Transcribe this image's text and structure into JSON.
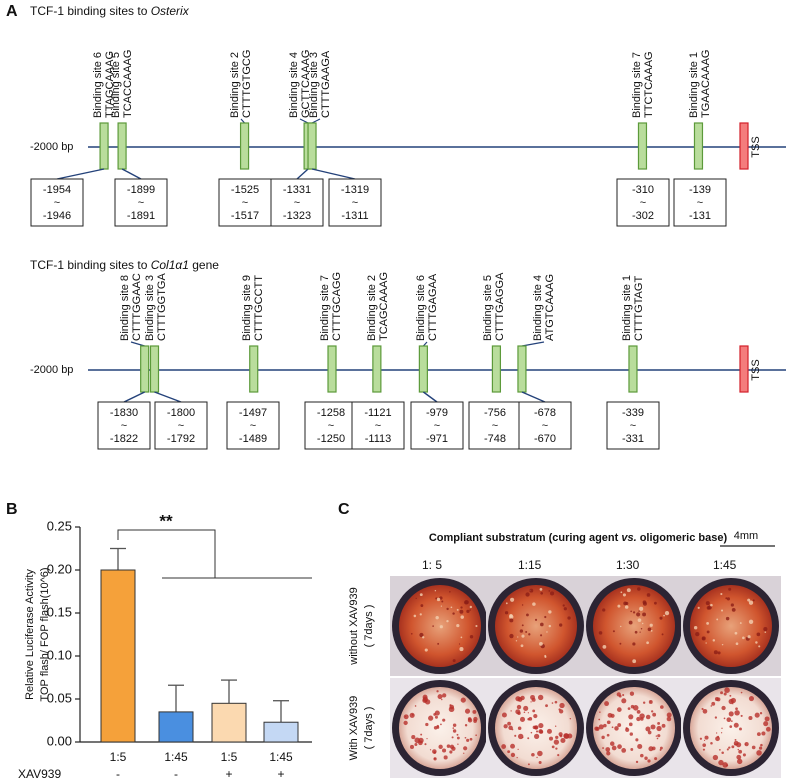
{
  "panel_a": {
    "label": "A",
    "osterix": {
      "title": "TCF-1 binding sites to ",
      "gene": "Osterix",
      "start": "-2000 bp",
      "tss": "TSS",
      "tilde": "~",
      "sites": [
        {
          "name": "Binding site 6",
          "seq": "TTAGCAAAG",
          "from": -1954,
          "to": -1946
        },
        {
          "name": "Binding site 5",
          "seq": "TCACCAAAG",
          "from": -1899,
          "to": -1891
        },
        {
          "name": "Binding site 2",
          "seq": "CTTTGTGCG",
          "from": -1525,
          "to": -1517
        },
        {
          "name": "Binding site 4",
          "seq": "GCTTCAAAG",
          "from": -1331,
          "to": -1323
        },
        {
          "name": "Binding site 3",
          "seq": "CTTTGAAGA",
          "from": -1319,
          "to": -1311
        },
        {
          "name": "Binding site 7",
          "seq": "TTCTCAAAG",
          "from": -310,
          "to": -302
        },
        {
          "name": "Binding site 1",
          "seq": "TGAACAAAG",
          "from": -139,
          "to": -131
        }
      ]
    },
    "col1a1": {
      "title": "TCF-1 binding sites to ",
      "gene": "Col1α1",
      "title_end": " gene",
      "start": "-2000 bp",
      "tss": "TSS",
      "tilde": "~",
      "sites": [
        {
          "name": "Binding site 8",
          "seq": "CTTTGGAAC",
          "from": -1830,
          "to": -1822
        },
        {
          "name": "Binding site 3",
          "seq": "CTTTGGTGA",
          "from": -1800,
          "to": -1792
        },
        {
          "name": "Binding site 9",
          "seq": "CTTTGCCTT",
          "from": -1497,
          "to": -1489
        },
        {
          "name": "Binding site 7",
          "seq": "CTTTGCAGG",
          "from": -1258,
          "to": -1250
        },
        {
          "name": "Binding site 2",
          "seq": "TCAGCAAAG",
          "from": -1121,
          "to": -1113
        },
        {
          "name": "Binding site 6",
          "seq": "CTTTGAGAA",
          "from": -979,
          "to": -971
        },
        {
          "name": "Binding site 5",
          "seq": "CTTTGAGGA",
          "from": -756,
          "to": -748
        },
        {
          "name": "Binding site 4",
          "seq": "ATGTCAAAG",
          "from": -678,
          "to": -670
        },
        {
          "name": "Binding site 1",
          "seq": "CTTTGTAGT",
          "from": -339,
          "to": -331
        }
      ]
    }
  },
  "chart_data": {
    "type": "bar",
    "panel_label": "B",
    "ylabel_lines": [
      "Relative Luciferase Activity",
      "TOP flash/ FOP flash(10^6)"
    ],
    "categories": [
      "1:5",
      "1:45",
      "1:5",
      "1:45"
    ],
    "treatment_label": "XAV939",
    "treatment": [
      "-",
      "-",
      "+",
      "+"
    ],
    "values": [
      0.2,
      0.035,
      0.045,
      0.023
    ],
    "errors": [
      0.025,
      0.031,
      0.027,
      0.025
    ],
    "colors": [
      "#f5a13a",
      "#4a8fe0",
      "#fbd9b0",
      "#c4d8f4"
    ],
    "significance": "**",
    "ylim": [
      0,
      0.25
    ],
    "yticks": [
      {
        "value": 0,
        "label": "0.00"
      },
      {
        "value": 0.05,
        "label": "0.05"
      },
      {
        "value": 0.1,
        "label": "0.10"
      },
      {
        "value": 0.15,
        "label": "0.15"
      },
      {
        "value": 0.2,
        "label": "0.20"
      },
      {
        "value": 0.25,
        "label": "0.25"
      }
    ]
  },
  "panel_c": {
    "label": "C",
    "title_a": "Compliant substratum (curing agent ",
    "title_b": "vs.",
    "title_c": " oligomeric base)",
    "scale": "4mm",
    "columns": [
      "1: 5",
      "1:15",
      "1:30",
      "1:45"
    ],
    "rows": [
      {
        "name": "without XAV939",
        "days": "( 7days )"
      },
      {
        "name": "With XAV939",
        "days": "( 7days )"
      }
    ]
  }
}
